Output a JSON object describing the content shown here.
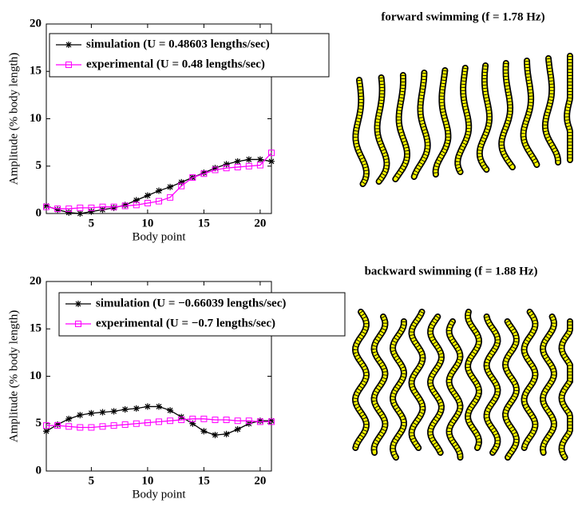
{
  "chart_data": [
    {
      "type": "line",
      "annotation": "forward swimming (f = 1.78 Hz)",
      "x_label": "Body point",
      "y_label": "Amplitude (% body length)",
      "x": [
        1,
        2,
        3,
        4,
        5,
        6,
        7,
        8,
        9,
        10,
        11,
        12,
        13,
        14,
        15,
        16,
        17,
        18,
        19,
        20,
        21
      ],
      "xlim": [
        1,
        21
      ],
      "ylim": [
        0,
        20
      ],
      "xticks": [
        5,
        10,
        15,
        20
      ],
      "yticks": [
        0,
        5,
        10,
        15,
        20
      ],
      "series": [
        {
          "name": "simulation (U = 0.48603 lengths/sec)",
          "color": "#000000",
          "marker": "star",
          "values": [
            0.8,
            0.4,
            0.1,
            0.0,
            0.2,
            0.4,
            0.6,
            0.9,
            1.4,
            1.9,
            2.4,
            2.8,
            3.3,
            3.8,
            4.3,
            4.8,
            5.2,
            5.5,
            5.7,
            5.7,
            5.5
          ]
        },
        {
          "name": "experimental (U = 0.48 lengths/sec)",
          "color": "#ff00ff",
          "marker": "square",
          "values": [
            0.7,
            0.5,
            0.5,
            0.6,
            0.6,
            0.7,
            0.7,
            0.8,
            0.9,
            1.1,
            1.3,
            1.7,
            2.9,
            3.8,
            4.2,
            4.6,
            4.8,
            4.9,
            5.0,
            5.1,
            6.4
          ]
        }
      ]
    },
    {
      "type": "line",
      "annotation": "backward swimming (f = 1.88 Hz)",
      "x_label": "Body point",
      "y_label": "Amplitude (% body length)",
      "x": [
        1,
        2,
        3,
        4,
        5,
        6,
        7,
        8,
        9,
        10,
        11,
        12,
        13,
        14,
        15,
        16,
        17,
        18,
        19,
        20,
        21
      ],
      "xlim": [
        1,
        21
      ],
      "ylim": [
        0,
        20
      ],
      "xticks": [
        5,
        10,
        15,
        20
      ],
      "yticks": [
        0,
        5,
        10,
        15,
        20
      ],
      "series": [
        {
          "name": "simulation (U = −0.66039 lengths/sec)",
          "color": "#000000",
          "marker": "star",
          "values": [
            4.2,
            4.9,
            5.5,
            5.9,
            6.1,
            6.2,
            6.3,
            6.5,
            6.6,
            6.8,
            6.8,
            6.4,
            5.7,
            5.0,
            4.2,
            3.8,
            3.9,
            4.4,
            5.0,
            5.3,
            5.3
          ]
        },
        {
          "name": "experimental (U = −0.7 lengths/sec)",
          "color": "#ff00ff",
          "marker": "square",
          "values": [
            4.8,
            4.8,
            4.7,
            4.6,
            4.6,
            4.7,
            4.8,
            4.9,
            5.0,
            5.1,
            5.2,
            5.3,
            5.4,
            5.5,
            5.5,
            5.4,
            5.4,
            5.3,
            5.3,
            5.2,
            5.2
          ]
        }
      ]
    }
  ]
}
